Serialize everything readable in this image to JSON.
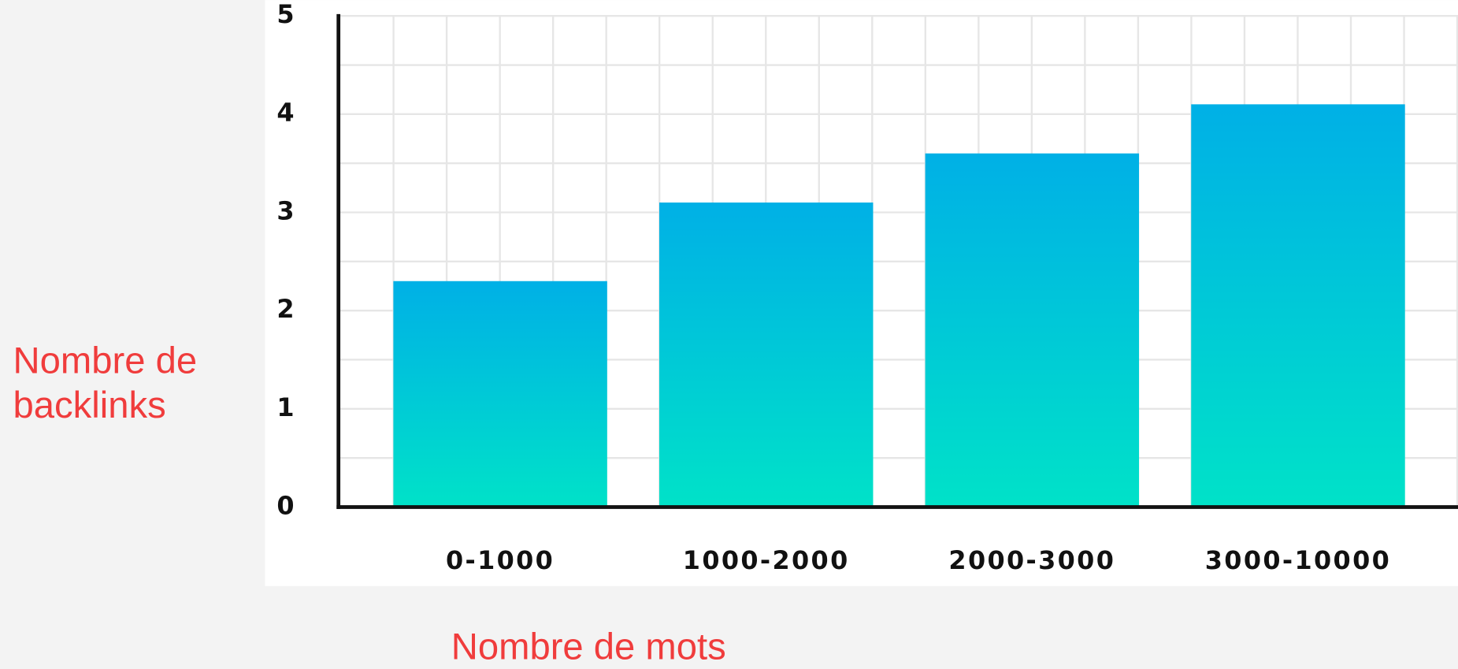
{
  "chart_data": {
    "type": "bar",
    "x_label": "Nombre de mots",
    "y_label": "Nombre de backlinks",
    "categories": [
      "0-1000",
      "1000-2000",
      "2000-3000",
      "3000-10000"
    ],
    "values": [
      2.3,
      3.1,
      3.6,
      4.1
    ],
    "color": [
      "#00b0e6",
      "#00e2c8"
    ],
    "ylim": [
      0,
      5
    ],
    "yticks": [
      0,
      1,
      2,
      3,
      4,
      5
    ],
    "grid": true
  }
}
